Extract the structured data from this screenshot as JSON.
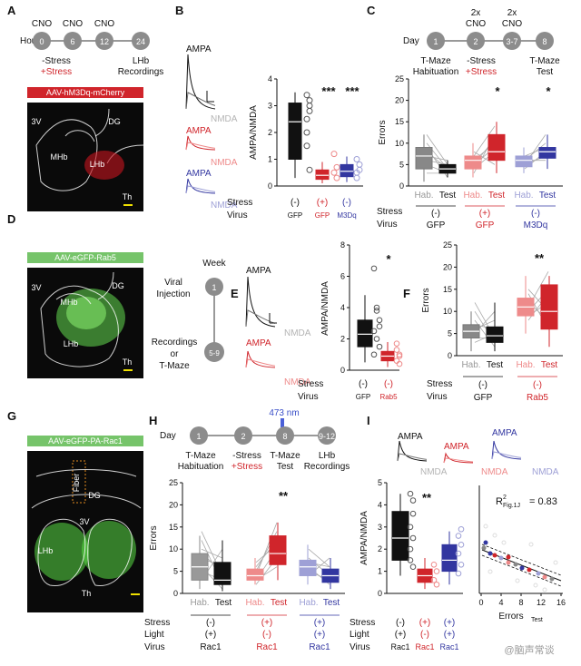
{
  "colors": {
    "black": "#111111",
    "red": "#d0252b",
    "lightred": "#ee8a8a",
    "blue": "#3236a0",
    "lightblue": "#9ea0d6",
    "gray": "#8c8c8c",
    "lightgray": "#b4b4b4",
    "green": "#76c46a",
    "darkbg": "#0a0a0a"
  },
  "panels": [
    "A",
    "B",
    "C",
    "D",
    "E",
    "F",
    "G",
    "H",
    "I"
  ],
  "panelA": {
    "timeline_label": "Hour",
    "nodes": [
      "0",
      "6",
      "12",
      "24"
    ],
    "cno": [
      "CNO",
      "CNO",
      "CNO"
    ],
    "stress_neg": "-Stress",
    "stress_pos": "+Stress",
    "recordings": [
      "LHb",
      "Recordings"
    ],
    "virus_bar": "AAV-hM3Dq-mCherry",
    "regions": [
      "3V",
      "DG",
      "MHb",
      "LHb",
      "Th"
    ]
  },
  "panelB": {
    "traces": [
      "AMPA",
      "NMDA",
      "AMPA",
      "NMDA",
      "AMPA",
      "NMDA"
    ],
    "ylabel": "AMPA/NMDA",
    "yticks": [
      "0",
      "1",
      "2",
      "3",
      "4"
    ],
    "sig": [
      "***",
      "***"
    ],
    "row_stress": "Stress",
    "row_virus": "Virus",
    "stress_vals": [
      "(-)",
      "(+)",
      "(-)"
    ],
    "virus_vals": [
      "GFP",
      "GFP",
      "M3Dq"
    ]
  },
  "panelC": {
    "timeline_label": "Day",
    "nodes": [
      "1",
      "2",
      "3-7",
      "8"
    ],
    "cno": [
      "2x",
      "CNO",
      "2x",
      "CNO"
    ],
    "labels": [
      "T-Maze",
      "Habituation",
      "-Stress",
      "+Stress",
      "T-Maze",
      "Test"
    ],
    "ylabel": "Errors",
    "yticks": [
      "0",
      "5",
      "10",
      "15",
      "20",
      "25"
    ],
    "sig": [
      "*",
      "*"
    ],
    "x_labels": [
      "Hab.",
      "Test",
      "Hab.",
      "Test",
      "Hab.",
      "Test"
    ],
    "row_stress": "Stress",
    "row_virus": "Virus",
    "stress_vals": [
      "(-)",
      "(+)",
      "(-)"
    ],
    "virus_vals": [
      "GFP",
      "GFP",
      "M3Dq"
    ]
  },
  "panelD": {
    "virus_bar": "AAV-eGFP-Rab5",
    "regions": [
      "3V",
      "DG",
      "MHb",
      "LHb",
      "Th"
    ],
    "week_label": "Week",
    "nodes": [
      "1",
      "5-9"
    ],
    "labels": [
      "Viral",
      "Injection",
      "Recordings",
      "or",
      "T-Maze"
    ]
  },
  "panelE": {
    "traces": [
      "AMPA",
      "NMDA",
      "AMPA",
      "NMDA"
    ],
    "ylabel": "AMPA/NMDA",
    "yticks": [
      "0",
      "2",
      "4",
      "6",
      "8"
    ],
    "sig": "*",
    "row_stress": "Stress",
    "row_virus": "Virus",
    "stress_vals": [
      "(-)",
      "(-)"
    ],
    "virus_vals": [
      "GFP",
      "Rab5"
    ]
  },
  "panelF": {
    "ylabel": "Errors",
    "yticks": [
      "0",
      "5",
      "10",
      "15",
      "20",
      "25"
    ],
    "sig": "**",
    "x_labels": [
      "Hab.",
      "Test",
      "Hab.",
      "Test"
    ],
    "row_stress": "Stress",
    "row_virus": "Virus",
    "stress_vals": [
      "(-)",
      "(-)"
    ],
    "virus_vals": [
      "GFP",
      "Rab5"
    ]
  },
  "panelG": {
    "virus_bar": "AAV-eGFP-PA-Rac1",
    "regions": [
      "Fiber",
      "DG",
      "3V",
      "LHb",
      "Th"
    ]
  },
  "panelH": {
    "timeline_label": "Day",
    "nodes": [
      "1",
      "2",
      "8",
      "9-12"
    ],
    "light": "473 nm",
    "labels": [
      "T-Maze",
      "Habituation",
      "-Stress",
      "+Stress",
      "T-Maze",
      "Test",
      "LHb",
      "Recordings"
    ],
    "ylabel": "Errors",
    "yticks": [
      "0",
      "5",
      "10",
      "15",
      "20",
      "25"
    ],
    "sig": "**",
    "x_labels": [
      "Hab.",
      "Test",
      "Hab.",
      "Test",
      "Hab.",
      "Test"
    ],
    "row_stress": "Stress",
    "row_light": "Light",
    "row_virus": "Virus",
    "stress_vals": [
      "(-)",
      "(+)",
      "(+)"
    ],
    "light_vals": [
      "(+)",
      "(-)",
      "(+)"
    ],
    "virus_vals": [
      "Rac1",
      "Rac1",
      "Rac1"
    ]
  },
  "panelI": {
    "traces": [
      "AMPA",
      "NMDA",
      "AMPA",
      "NMDA",
      "AMPA",
      "NMDA"
    ],
    "ylabel": "AMPA/NMDA",
    "yticks": [
      "0",
      "1",
      "2",
      "3",
      "4",
      "5"
    ],
    "sig": "**",
    "row_stress": "Stress",
    "row_light": "Light",
    "row_virus": "Virus",
    "stress_vals": [
      "(-)",
      "(+)",
      "(+)"
    ],
    "light_vals": [
      "(+)",
      "(-)",
      "(+)"
    ],
    "virus_vals": [
      "Rac1",
      "Rac1",
      "Rac1"
    ],
    "r2_main": "R",
    "r2_sup": "2",
    "r2_sub": "Fig.1J",
    "r2_val": "= 0.83",
    "xlabel": "Errors",
    "xlabel_sub": "Test",
    "xticks": [
      "0",
      "4",
      "8",
      "12",
      "16"
    ],
    "watermark": "@脑声常谈"
  }
}
